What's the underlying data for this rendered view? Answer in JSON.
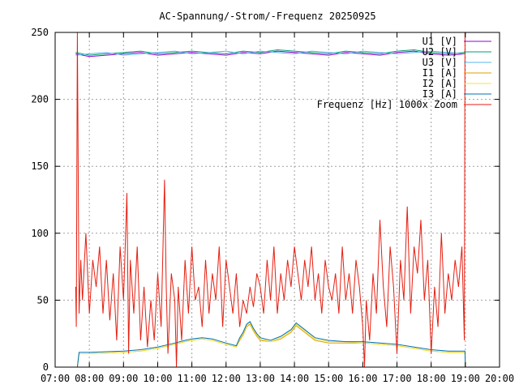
{
  "chart_data": {
    "type": "line",
    "title": "AC-Spannung/-Strom/-Frequenz 20250925",
    "xlabel": "",
    "ylabel": "",
    "xlim": [
      7.0,
      20.0
    ],
    "ylim": [
      0,
      250
    ],
    "x_ticks": [
      "07:00",
      "08:00",
      "09:00",
      "10:00",
      "11:00",
      "12:00",
      "13:00",
      "14:00",
      "15:00",
      "16:00",
      "17:00",
      "18:00",
      "19:00",
      "20:00"
    ],
    "y_ticks": [
      "0",
      "50",
      "100",
      "150",
      "200",
      "250"
    ],
    "grid": true,
    "legend_position": "top-right",
    "series": [
      {
        "name": "U1 [V]",
        "color": "#9400d3",
        "x": [
          7.6,
          8.0,
          8.5,
          9.0,
          9.5,
          10.0,
          10.5,
          11.0,
          11.5,
          12.0,
          12.5,
          13.0,
          13.5,
          14.0,
          14.5,
          15.0,
          15.5,
          16.0,
          16.5,
          17.0,
          17.5,
          18.0,
          18.5,
          19.0
        ],
        "y": [
          234,
          232,
          233,
          234,
          235,
          233,
          234,
          235,
          234,
          233,
          235,
          234,
          236,
          235,
          234,
          233,
          235,
          234,
          233,
          235,
          236,
          234,
          233,
          234
        ]
      },
      {
        "name": "U2 [V]",
        "color": "#009e73",
        "x": [
          7.6,
          8.0,
          8.5,
          9.0,
          9.5,
          10.0,
          10.5,
          11.0,
          11.5,
          12.0,
          12.5,
          13.0,
          13.5,
          14.0,
          14.5,
          15.0,
          15.5,
          16.0,
          16.5,
          17.0,
          17.5,
          18.0,
          18.5,
          19.0
        ],
        "y": [
          235,
          233,
          234,
          235,
          236,
          234,
          235,
          236,
          235,
          234,
          236,
          235,
          237,
          236,
          235,
          234,
          236,
          235,
          234,
          236,
          237,
          235,
          234,
          235
        ]
      },
      {
        "name": "U3 [V]",
        "color": "#56b4e9",
        "x": [
          7.6,
          8.0,
          8.5,
          9.0,
          9.5,
          10.0,
          10.5,
          11.0,
          11.5,
          12.0,
          12.5,
          13.0,
          13.5,
          14.0,
          14.5,
          15.0,
          15.5,
          16.0,
          16.5,
          17.0,
          17.5,
          18.0,
          18.5,
          19.0
        ],
        "y": [
          233,
          234,
          235,
          233,
          234,
          235,
          236,
          234,
          235,
          236,
          234,
          236,
          235,
          234,
          236,
          235,
          234,
          236,
          235,
          234,
          235,
          236,
          235,
          234
        ]
      },
      {
        "name": "I1 [A]",
        "color": "#e69f00",
        "x": [
          7.65,
          7.7,
          8.0,
          9.0,
          9.5,
          10.0,
          10.5,
          10.8,
          11.0,
          11.3,
          11.6,
          12.0,
          12.3,
          12.4,
          12.5,
          12.6,
          12.7,
          12.8,
          12.9,
          13.0,
          13.3,
          13.6,
          13.9,
          14.05,
          14.3,
          14.6,
          15.0,
          15.5,
          16.0,
          16.5,
          17.0,
          17.5,
          18.0,
          18.5,
          18.99,
          19.0
        ],
        "y": [
          0,
          10,
          10,
          11,
          12,
          14,
          17,
          19,
          20,
          21,
          20,
          17,
          15,
          20,
          24,
          30,
          32,
          27,
          23,
          20,
          19,
          21,
          26,
          31,
          26,
          20,
          18,
          18,
          18,
          17,
          16,
          14,
          12,
          11,
          11,
          0
        ]
      },
      {
        "name": "I2 [A]",
        "color": "#f0e442",
        "x": [
          7.65,
          7.7,
          8.0,
          9.0,
          9.5,
          10.0,
          10.5,
          10.8,
          11.0,
          11.3,
          11.6,
          12.0,
          12.3,
          12.4,
          12.5,
          12.6,
          12.7,
          12.8,
          12.9,
          13.0,
          13.3,
          13.6,
          13.9,
          14.05,
          14.3,
          14.6,
          15.0,
          15.5,
          16.0,
          16.5,
          17.0,
          17.5,
          18.0,
          18.5,
          18.99,
          19.0
        ],
        "y": [
          0,
          10,
          10,
          11,
          12,
          14,
          17,
          19,
          20,
          21,
          20,
          17,
          15,
          21,
          25,
          31,
          33,
          28,
          24,
          21,
          19,
          22,
          27,
          32,
          27,
          21,
          19,
          19,
          18,
          17,
          16,
          14,
          12,
          11,
          11,
          0
        ]
      },
      {
        "name": "I3 [A]",
        "color": "#0072b2",
        "x": [
          7.65,
          7.7,
          8.0,
          9.0,
          9.5,
          10.0,
          10.5,
          10.8,
          11.0,
          11.3,
          11.6,
          12.0,
          12.3,
          12.4,
          12.5,
          12.6,
          12.7,
          12.8,
          12.9,
          13.0,
          13.3,
          13.6,
          13.9,
          14.05,
          14.3,
          14.6,
          15.0,
          15.5,
          16.0,
          16.5,
          17.0,
          17.5,
          18.0,
          18.5,
          18.99,
          19.0
        ],
        "y": [
          0,
          11,
          11,
          12,
          13,
          15,
          18,
          20,
          21,
          22,
          21,
          18,
          16,
          22,
          26,
          32,
          34,
          29,
          25,
          22,
          20,
          23,
          28,
          33,
          28,
          22,
          20,
          19,
          19,
          18,
          17,
          15,
          13,
          12,
          12,
          0
        ]
      },
      {
        "name": "Frequenz [Hz] 1000x Zoom",
        "color": "#e51e10",
        "x": [
          7.6,
          7.62,
          7.65,
          7.7,
          7.75,
          7.8,
          7.9,
          8.0,
          8.1,
          8.2,
          8.3,
          8.4,
          8.5,
          8.6,
          8.7,
          8.8,
          8.9,
          9.0,
          9.1,
          9.15,
          9.2,
          9.3,
          9.4,
          9.5,
          9.6,
          9.7,
          9.8,
          9.9,
          10.0,
          10.1,
          10.2,
          10.25,
          10.3,
          10.4,
          10.5,
          10.55,
          10.6,
          10.7,
          10.8,
          10.9,
          11.0,
          11.1,
          11.2,
          11.3,
          11.4,
          11.5,
          11.6,
          11.7,
          11.8,
          11.9,
          12.0,
          12.1,
          12.2,
          12.3,
          12.4,
          12.5,
          12.6,
          12.7,
          12.8,
          12.9,
          13.0,
          13.1,
          13.2,
          13.3,
          13.4,
          13.5,
          13.6,
          13.7,
          13.8,
          13.9,
          14.0,
          14.1,
          14.2,
          14.3,
          14.4,
          14.5,
          14.6,
          14.7,
          14.8,
          14.9,
          15.0,
          15.1,
          15.2,
          15.3,
          15.4,
          15.5,
          15.6,
          15.7,
          15.8,
          15.9,
          16.0,
          16.05,
          16.1,
          16.2,
          16.3,
          16.4,
          16.5,
          16.6,
          16.7,
          16.8,
          16.9,
          17.0,
          17.1,
          17.2,
          17.3,
          17.4,
          17.5,
          17.6,
          17.7,
          17.8,
          17.9,
          18.0,
          18.1,
          18.2,
          18.3,
          18.4,
          18.5,
          18.6,
          18.7,
          18.8,
          18.9,
          18.97,
          18.99,
          19.0
        ],
        "y": [
          60,
          30,
          250,
          40,
          80,
          50,
          100,
          40,
          80,
          60,
          90,
          40,
          80,
          35,
          70,
          20,
          90,
          50,
          130,
          10,
          80,
          40,
          90,
          20,
          60,
          15,
          50,
          20,
          70,
          30,
          140,
          60,
          10,
          70,
          50,
          0,
          60,
          20,
          80,
          40,
          90,
          50,
          60,
          30,
          80,
          40,
          70,
          50,
          90,
          30,
          80,
          60,
          40,
          70,
          30,
          50,
          40,
          60,
          45,
          70,
          60,
          40,
          80,
          50,
          90,
          40,
          70,
          50,
          80,
          60,
          90,
          70,
          50,
          80,
          60,
          90,
          50,
          70,
          40,
          80,
          60,
          50,
          70,
          40,
          90,
          50,
          70,
          40,
          80,
          60,
          30,
          0,
          50,
          20,
          70,
          40,
          110,
          60,
          30,
          90,
          60,
          10,
          80,
          50,
          120,
          40,
          90,
          70,
          110,
          50,
          80,
          10,
          60,
          30,
          100,
          40,
          70,
          50,
          80,
          60,
          90,
          20,
          250,
          250
        ]
      }
    ]
  }
}
